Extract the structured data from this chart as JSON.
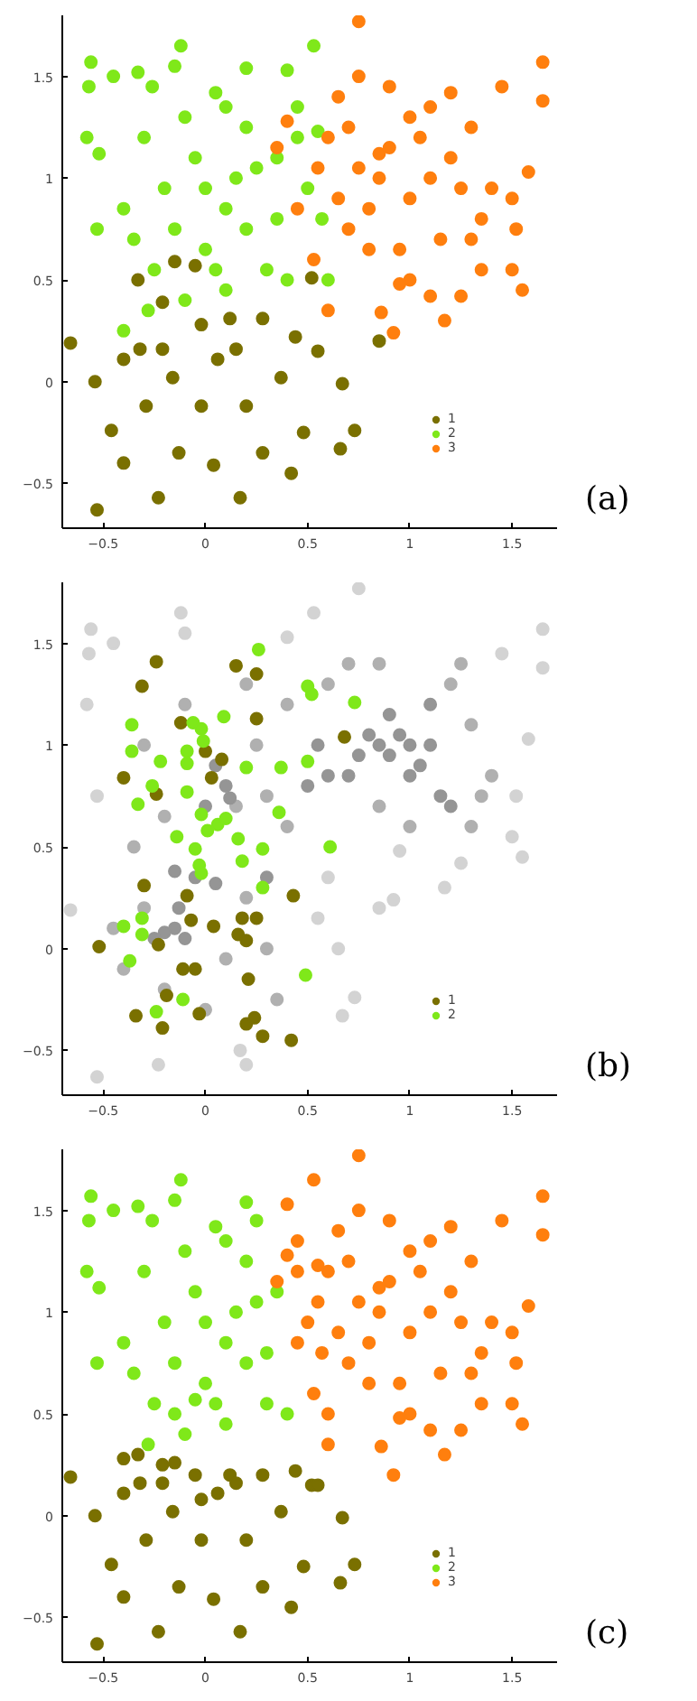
{
  "chart_data": [
    {
      "type": "scatter",
      "xlim": [
        -0.7,
        1.72
      ],
      "ylim": [
        -0.72,
        1.8
      ],
      "xticks": [
        -0.5,
        0,
        0.5,
        1,
        1.5
      ],
      "yticks": [
        -0.5,
        0,
        0.5,
        1,
        1.5
      ],
      "grid": false,
      "legend": "bottom right",
      "marker": "circle",
      "annotations": [
        "(a)"
      ],
      "series": [
        {
          "name": "1",
          "color": "#7a7000",
          "x": [
            -0.66,
            -0.53,
            -0.33,
            -0.15,
            -0.05,
            0.52,
            0.55,
            0.67,
            0.66,
            0.73,
            0.85,
            0.48,
            0.42,
            0.17,
            -0.23,
            -0.4,
            -0.54,
            -0.4,
            -0.21,
            0.12,
            0.28,
            0.37,
            0.2,
            -0.02,
            -0.16,
            -0.29,
            -0.13,
            0.04,
            0.28,
            0.44,
            -0.32,
            -0.46,
            0.06,
            -0.21,
            -0.02,
            0.15
          ],
          "values": [
            0.19,
            -0.63,
            0.5,
            0.59,
            0.57,
            0.51,
            0.15,
            -0.01,
            -0.33,
            -0.24,
            0.2,
            -0.25,
            -0.45,
            -0.57,
            -0.57,
            -0.4,
            0.0,
            0.11,
            0.39,
            0.31,
            0.31,
            0.02,
            -0.12,
            -0.12,
            0.02,
            -0.12,
            -0.35,
            -0.41,
            -0.35,
            0.22,
            0.16,
            -0.24,
            0.11,
            0.16,
            0.28,
            0.16
          ]
        },
        {
          "name": "2",
          "color": "#7fe81a",
          "x": [
            -0.56,
            -0.57,
            -0.45,
            -0.58,
            -0.52,
            -0.53,
            -0.4,
            -0.33,
            -0.26,
            -0.15,
            -0.12,
            -0.1,
            0.05,
            0.2,
            0.4,
            0.53,
            0.45,
            0.35,
            0.2,
            0.1,
            -0.05,
            0.0,
            -0.3,
            -0.2,
            -0.35,
            -0.15,
            0.0,
            0.05,
            0.2,
            0.35,
            0.5,
            0.57,
            0.6,
            0.4,
            0.3,
            0.1,
            -0.1,
            -0.28,
            -0.4,
            0.15,
            0.45,
            0.55,
            -0.25,
            0.1,
            0.25
          ],
          "values": [
            1.57,
            1.45,
            1.5,
            1.2,
            1.12,
            0.75,
            0.85,
            1.52,
            1.45,
            1.55,
            1.65,
            1.3,
            1.42,
            1.54,
            1.53,
            1.65,
            1.35,
            1.1,
            1.25,
            1.35,
            1.1,
            0.95,
            1.2,
            0.95,
            0.7,
            0.75,
            0.65,
            0.55,
            0.75,
            0.8,
            0.95,
            0.8,
            0.5,
            0.5,
            0.55,
            0.45,
            0.4,
            0.35,
            0.25,
            1.0,
            1.2,
            1.23,
            0.55,
            0.85,
            1.05
          ]
        },
        {
          "name": "3",
          "color": "#ff7f0e",
          "x": [
            0.75,
            1.65,
            1.65,
            1.45,
            1.58,
            1.5,
            1.52,
            1.5,
            1.55,
            1.35,
            1.25,
            1.17,
            1.1,
            0.92,
            0.86,
            0.6,
            0.53,
            0.45,
            0.35,
            0.4,
            0.55,
            0.65,
            0.7,
            0.75,
            0.8,
            0.85,
            0.9,
            0.95,
            1.0,
            1.05,
            1.1,
            1.15,
            1.2,
            1.3,
            1.35,
            1.4,
            1.25,
            1.0,
            0.9,
            0.75,
            0.65,
            0.6,
            0.7,
            1.1,
            1.2,
            1.0,
            0.8,
            0.95,
            1.3,
            0.85
          ],
          "values": [
            1.77,
            1.57,
            1.38,
            1.45,
            1.03,
            0.9,
            0.75,
            0.55,
            0.45,
            0.55,
            0.42,
            0.3,
            0.42,
            0.24,
            0.34,
            0.35,
            0.6,
            0.85,
            1.15,
            1.28,
            1.05,
            0.9,
            0.75,
            1.05,
            0.85,
            1.0,
            1.15,
            0.65,
            0.9,
            1.2,
            1.0,
            0.7,
            1.1,
            1.25,
            0.8,
            0.95,
            0.95,
            1.3,
            1.45,
            1.5,
            1.4,
            1.2,
            1.25,
            1.35,
            1.42,
            0.5,
            0.65,
            0.48,
            0.7,
            1.12
          ]
        }
      ]
    },
    {
      "type": "scatter",
      "xlim": [
        -0.7,
        1.72
      ],
      "ylim": [
        -0.72,
        1.8
      ],
      "xticks": [
        -0.5,
        0,
        0.5,
        1,
        1.5
      ],
      "yticks": [
        -0.5,
        0,
        0.5,
        1,
        1.5
      ],
      "grid": false,
      "legend": "bottom right",
      "marker": "circle",
      "annotations": [
        "(b)"
      ],
      "series": [
        {
          "color": "#d3d3d3",
          "x": [
            -0.66,
            -0.53,
            -0.56,
            -0.57,
            -0.58,
            -0.53,
            -0.12,
            -0.1,
            0.2,
            0.17,
            -0.23,
            0.67,
            0.73,
            0.65,
            0.55,
            0.85,
            0.92,
            1.17,
            1.25,
            1.55,
            1.5,
            1.58,
            1.65,
            1.65,
            0.75,
            0.53,
            1.45,
            0.6,
            -0.45,
            0.4,
            0.95,
            1.52
          ],
          "values": [
            0.19,
            -0.63,
            1.57,
            1.45,
            1.2,
            0.75,
            1.65,
            1.55,
            -0.57,
            -0.5,
            -0.57,
            -0.33,
            -0.24,
            0.0,
            0.15,
            0.2,
            0.24,
            0.3,
            0.42,
            0.45,
            0.55,
            1.03,
            1.57,
            1.38,
            1.77,
            1.65,
            1.45,
            0.35,
            1.5,
            1.53,
            0.48,
            0.75
          ]
        },
        {
          "color": "#b0b0b0",
          "x": [
            -0.3,
            -0.4,
            -0.2,
            0.1,
            0.2,
            0.3,
            -0.35,
            -0.2,
            0.15,
            0.25,
            -0.1,
            0.2,
            0.4,
            0.6,
            0.7,
            1.2,
            1.3,
            1.4,
            1.3,
            1.0,
            0.85,
            0.4,
            -0.3,
            0.35,
            0.0,
            -0.45,
            1.35,
            1.25,
            0.85,
            0.3
          ],
          "values": [
            0.2,
            -0.1,
            -0.2,
            -0.05,
            0.25,
            0.0,
            0.5,
            0.65,
            0.7,
            1.0,
            1.2,
            1.3,
            1.2,
            1.3,
            1.4,
            1.3,
            1.1,
            0.85,
            0.6,
            0.6,
            0.7,
            0.6,
            1.0,
            -0.25,
            -0.3,
            0.1,
            0.75,
            1.4,
            1.4,
            0.75
          ]
        },
        {
          "color": "#959595",
          "x": [
            0.85,
            0.9,
            0.95,
            1.0,
            0.8,
            0.75,
            1.05,
            1.1,
            0.9,
            1.0,
            0.7,
            1.15,
            1.2,
            1.1,
            -0.15,
            -0.1,
            -0.2,
            -0.13,
            -0.25,
            0.05,
            -0.05,
            -0.15,
            0.12,
            0.0,
            0.1,
            0.05,
            0.3,
            0.5,
            0.6,
            0.55
          ],
          "values": [
            1.0,
            0.95,
            1.05,
            1.0,
            1.05,
            0.95,
            0.9,
            1.0,
            1.15,
            0.85,
            0.85,
            0.75,
            0.7,
            1.2,
            0.1,
            0.05,
            0.08,
            0.2,
            0.05,
            0.32,
            0.35,
            0.38,
            0.74,
            0.7,
            0.8,
            0.9,
            0.35,
            0.8,
            0.85,
            1.0
          ]
        },
        {
          "name": "1",
          "color": "#7a7000",
          "x": [
            -0.24,
            -0.31,
            0.15,
            0.25,
            0.25,
            -0.12,
            0.68,
            0.0,
            0.08,
            -0.4,
            -0.24,
            0.03,
            -0.3,
            -0.09,
            0.43,
            -0.52,
            -0.23,
            -0.07,
            0.04,
            0.18,
            0.25,
            0.16,
            0.2,
            -0.11,
            -0.05,
            0.21,
            -0.19,
            -0.34,
            -0.03,
            -0.21,
            0.2,
            0.24,
            0.28,
            0.42
          ],
          "values": [
            1.41,
            1.29,
            1.39,
            1.35,
            1.13,
            1.11,
            1.04,
            0.97,
            0.93,
            0.84,
            0.76,
            0.84,
            0.31,
            0.26,
            0.26,
            0.01,
            0.02,
            0.14,
            0.11,
            0.15,
            0.15,
            0.07,
            0.04,
            -0.1,
            -0.1,
            -0.15,
            -0.23,
            -0.33,
            -0.32,
            -0.39,
            -0.37,
            -0.34,
            -0.43,
            -0.45
          ]
        },
        {
          "name": "2",
          "color": "#7fe81a",
          "x": [
            0.26,
            0.5,
            0.52,
            0.73,
            0.09,
            -0.36,
            -0.06,
            -0.02,
            -0.01,
            -0.36,
            -0.22,
            -0.09,
            -0.09,
            0.2,
            0.37,
            0.5,
            -0.26,
            -0.09,
            -0.33,
            0.36,
            -0.02,
            0.01,
            0.06,
            0.1,
            -0.14,
            0.16,
            0.28,
            -0.05,
            0.61,
            0.18,
            -0.03,
            -0.02,
            0.28,
            -0.31,
            -0.4,
            -0.31,
            -0.37,
            0.49,
            -0.11,
            -0.24
          ],
          "values": [
            1.47,
            1.29,
            1.25,
            1.21,
            1.14,
            1.1,
            1.11,
            1.08,
            1.02,
            0.97,
            0.92,
            0.97,
            0.91,
            0.89,
            0.89,
            0.92,
            0.8,
            0.77,
            0.71,
            0.67,
            0.66,
            0.58,
            0.61,
            0.64,
            0.55,
            0.54,
            0.49,
            0.49,
            0.5,
            0.43,
            0.41,
            0.37,
            0.3,
            0.15,
            0.11,
            0.07,
            -0.06,
            -0.13,
            -0.25,
            -0.31
          ]
        }
      ]
    },
    {
      "type": "scatter",
      "xlim": [
        -0.7,
        1.72
      ],
      "ylim": [
        -0.72,
        1.8
      ],
      "xticks": [
        -0.5,
        0,
        0.5,
        1,
        1.5
      ],
      "yticks": [
        -0.5,
        0,
        0.5,
        1,
        1.5
      ],
      "grid": false,
      "legend": "bottom right",
      "marker": "circle",
      "annotations": [
        "(c)"
      ],
      "series": [
        {
          "name": "1",
          "color": "#7a7000",
          "x": [
            -0.66,
            -0.53,
            -0.33,
            -0.15,
            -0.05,
            0.52,
            0.55,
            0.67,
            0.66,
            0.73,
            0.48,
            0.42,
            0.17,
            -0.23,
            -0.4,
            -0.54,
            -0.4,
            -0.21,
            0.12,
            0.28,
            0.37,
            0.2,
            -0.02,
            -0.16,
            -0.29,
            -0.13,
            0.04,
            0.28,
            0.44,
            -0.32,
            -0.46,
            0.06,
            -0.21,
            -0.02,
            0.15,
            -0.4
          ],
          "values": [
            0.19,
            -0.63,
            0.3,
            0.26,
            0.2,
            0.15,
            0.15,
            -0.01,
            -0.33,
            -0.24,
            -0.25,
            -0.45,
            -0.57,
            -0.57,
            -0.4,
            0.0,
            0.11,
            0.25,
            0.2,
            0.2,
            0.02,
            -0.12,
            -0.12,
            0.02,
            -0.12,
            -0.35,
            -0.41,
            -0.35,
            0.22,
            0.16,
            -0.24,
            0.11,
            0.16,
            0.08,
            0.16,
            0.28
          ]
        },
        {
          "name": "2",
          "color": "#7fe81a",
          "x": [
            -0.56,
            -0.57,
            -0.45,
            -0.58,
            -0.52,
            -0.53,
            -0.4,
            -0.33,
            -0.26,
            -0.15,
            -0.12,
            -0.1,
            0.05,
            0.2,
            0.25,
            0.35,
            0.2,
            0.1,
            -0.05,
            0.0,
            -0.3,
            -0.2,
            -0.35,
            -0.15,
            0.0,
            0.05,
            0.2,
            0.3,
            0.4,
            0.3,
            0.1,
            -0.1,
            -0.28,
            0.15,
            -0.25,
            0.1,
            0.25,
            -0.15,
            -0.05
          ],
          "values": [
            1.57,
            1.45,
            1.5,
            1.2,
            1.12,
            0.75,
            0.85,
            1.52,
            1.45,
            1.55,
            1.65,
            1.3,
            1.42,
            1.54,
            1.45,
            1.1,
            1.25,
            1.35,
            1.1,
            0.95,
            1.2,
            0.95,
            0.7,
            0.75,
            0.65,
            0.55,
            0.75,
            0.8,
            0.5,
            0.55,
            0.45,
            0.4,
            0.35,
            1.0,
            0.55,
            0.85,
            1.05,
            0.5,
            0.57
          ]
        },
        {
          "name": "3",
          "color": "#ff7f0e",
          "x": [
            0.75,
            1.65,
            1.65,
            1.45,
            1.58,
            1.5,
            1.52,
            1.5,
            1.55,
            1.35,
            1.25,
            1.17,
            1.1,
            0.92,
            0.86,
            0.6,
            0.53,
            0.45,
            0.35,
            0.4,
            0.55,
            0.65,
            0.7,
            0.75,
            0.8,
            0.85,
            0.9,
            0.95,
            1.0,
            1.05,
            1.1,
            1.15,
            1.2,
            1.3,
            1.35,
            1.4,
            1.25,
            1.0,
            0.9,
            0.75,
            0.65,
            0.6,
            0.7,
            1.1,
            1.2,
            1.0,
            0.8,
            0.95,
            1.3,
            0.85,
            0.4,
            0.53,
            0.45,
            0.5,
            0.57,
            0.6,
            0.55,
            0.45
          ],
          "values": [
            1.77,
            1.57,
            1.38,
            1.45,
            1.03,
            0.9,
            0.75,
            0.55,
            0.45,
            0.55,
            0.42,
            0.3,
            0.42,
            0.2,
            0.34,
            0.35,
            0.6,
            0.85,
            1.15,
            1.28,
            1.05,
            0.9,
            0.75,
            1.05,
            0.85,
            1.0,
            1.15,
            0.65,
            0.9,
            1.2,
            1.0,
            0.7,
            1.1,
            1.25,
            0.8,
            0.95,
            0.95,
            1.3,
            1.45,
            1.5,
            1.4,
            1.2,
            1.25,
            1.35,
            1.42,
            0.5,
            0.65,
            0.48,
            0.7,
            1.12,
            1.53,
            1.65,
            1.35,
            0.95,
            0.8,
            0.5,
            1.23,
            1.2
          ]
        }
      ]
    }
  ]
}
